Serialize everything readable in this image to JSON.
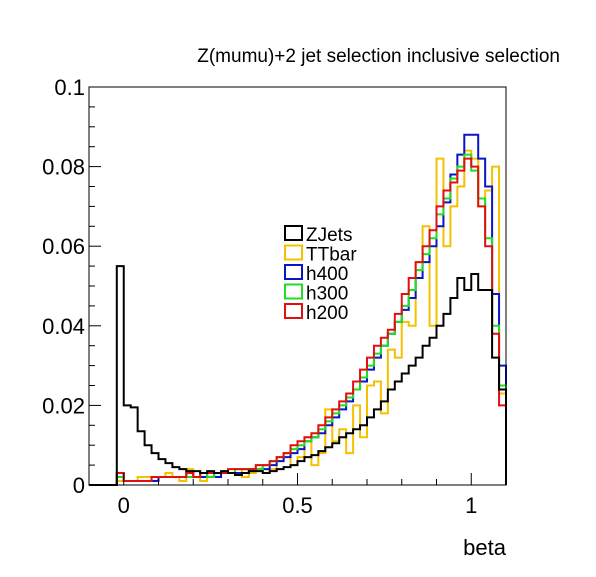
{
  "chart_data": {
    "type": "line",
    "title": "Z(mumu)+2 jet selection inclusive selection",
    "xlabel": "beta",
    "ylabel": "",
    "xlim": [
      -0.1,
      1.1
    ],
    "ylim": [
      0,
      0.1
    ],
    "x_ticks": [
      0,
      0.5,
      1
    ],
    "x_tick_labels": [
      "0",
      "0.5",
      "1"
    ],
    "y_ticks": [
      0,
      0.02,
      0.04,
      0.06,
      0.08,
      0.1
    ],
    "y_tick_labels": [
      "0",
      "0.02",
      "0.04",
      "0.06",
      "0.08",
      "0.1"
    ],
    "grid": false,
    "legend_position": "center-right",
    "bin_edges_range": [
      -0.1,
      1.1
    ],
    "n_bins": 60,
    "series": [
      {
        "name": "TTbar",
        "color": "#f5c000",
        "values": [
          0,
          0,
          0,
          0,
          0.001,
          0.001,
          0.001,
          0.002,
          0.002,
          0.001,
          0.002,
          0.003,
          0.002,
          0.001,
          0.004,
          0.002,
          0.001,
          0.003,
          0.002,
          0.003,
          0.003,
          0.004,
          0.002,
          0.003,
          0.005,
          0.003,
          0.004,
          0.006,
          0.008,
          0.005,
          0.007,
          0.012,
          0.005,
          0.008,
          0.019,
          0.011,
          0.014,
          0.008,
          0.02,
          0.012,
          0.025,
          0.026,
          0.018,
          0.034,
          0.032,
          0.041,
          0.04,
          0.056,
          0.065,
          0.04,
          0.082,
          0.06,
          0.07,
          0.075,
          0.084,
          0.082,
          0.07,
          0.074,
          0.08,
          0.023
        ]
      },
      {
        "name": "h400",
        "color": "#0a14c8",
        "values": [
          0,
          0,
          0,
          0,
          0.003,
          0.001,
          0.001,
          0.001,
          0.001,
          0.001,
          0.002,
          0.002,
          0.002,
          0.002,
          0.003,
          0.002,
          0.002,
          0.003,
          0.002,
          0.003,
          0.003,
          0.003,
          0.003,
          0.004,
          0.004,
          0.004,
          0.005,
          0.006,
          0.007,
          0.008,
          0.009,
          0.011,
          0.012,
          0.013,
          0.015,
          0.017,
          0.019,
          0.021,
          0.024,
          0.026,
          0.029,
          0.032,
          0.035,
          0.038,
          0.041,
          0.044,
          0.047,
          0.052,
          0.056,
          0.06,
          0.065,
          0.071,
          0.078,
          0.083,
          0.088,
          0.088,
          0.082,
          0.075,
          0.048,
          0.03
        ]
      },
      {
        "name": "h300",
        "color": "#22dd22",
        "values": [
          0,
          0,
          0,
          0,
          0.002,
          0.001,
          0.001,
          0.001,
          0.001,
          0.002,
          0.002,
          0.002,
          0.002,
          0.002,
          0.002,
          0.002,
          0.003,
          0.002,
          0.003,
          0.003,
          0.003,
          0.004,
          0.004,
          0.004,
          0.004,
          0.005,
          0.006,
          0.007,
          0.008,
          0.009,
          0.01,
          0.011,
          0.012,
          0.014,
          0.016,
          0.018,
          0.02,
          0.022,
          0.024,
          0.027,
          0.03,
          0.033,
          0.035,
          0.038,
          0.041,
          0.045,
          0.049,
          0.054,
          0.058,
          0.062,
          0.068,
          0.072,
          0.077,
          0.08,
          0.083,
          0.079,
          0.072,
          0.062,
          0.04,
          0.025
        ]
      },
      {
        "name": "h200",
        "color": "#e11010",
        "values": [
          0,
          0,
          0,
          0,
          0.003,
          0.001,
          0.001,
          0.001,
          0.001,
          0.002,
          0.002,
          0.002,
          0.002,
          0.002,
          0.003,
          0.002,
          0.003,
          0.003,
          0.003,
          0.003,
          0.004,
          0.004,
          0.004,
          0.004,
          0.005,
          0.005,
          0.006,
          0.007,
          0.008,
          0.01,
          0.011,
          0.012,
          0.013,
          0.015,
          0.017,
          0.019,
          0.021,
          0.023,
          0.026,
          0.029,
          0.032,
          0.035,
          0.037,
          0.039,
          0.043,
          0.048,
          0.052,
          0.056,
          0.06,
          0.064,
          0.07,
          0.074,
          0.076,
          0.079,
          0.082,
          0.08,
          0.07,
          0.06,
          0.038,
          0.02
        ]
      },
      {
        "name": "ZJets",
        "color": "#000000",
        "values": [
          0,
          0,
          0,
          0,
          0.055,
          0.02,
          0.0195,
          0.0135,
          0.01,
          0.008,
          0.0065,
          0.0055,
          0.0045,
          0.004,
          0.0035,
          0.0035,
          0.003,
          0.0035,
          0.003,
          0.0035,
          0.003,
          0.0025,
          0.003,
          0.0035,
          0.0035,
          0.003,
          0.0035,
          0.004,
          0.0045,
          0.005,
          0.006,
          0.007,
          0.0075,
          0.0085,
          0.0095,
          0.0105,
          0.012,
          0.013,
          0.014,
          0.015,
          0.017,
          0.019,
          0.021,
          0.024,
          0.026,
          0.028,
          0.03,
          0.032,
          0.035,
          0.037,
          0.04,
          0.043,
          0.047,
          0.052,
          0.049,
          0.053,
          0.049,
          0.049,
          0.032,
          0.024
        ]
      }
    ],
    "legend_order": [
      "ZJets",
      "TTbar",
      "h400",
      "h300",
      "h200"
    ]
  }
}
